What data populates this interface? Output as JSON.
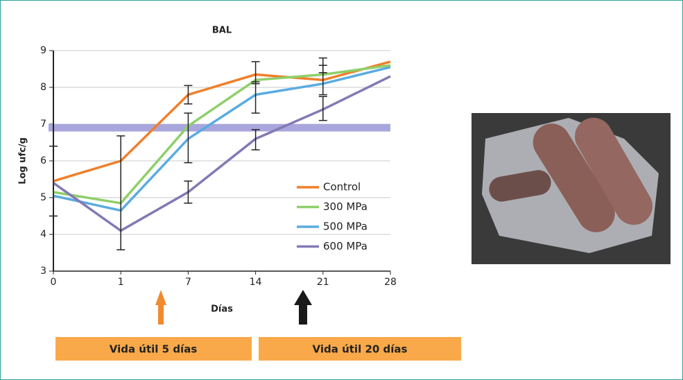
{
  "chart_data": {
    "type": "line",
    "title": "BAL",
    "x_label": "Días",
    "y_label": "Log ufc/g",
    "categories": [
      "0",
      "1",
      "7",
      "14",
      "21",
      "28"
    ],
    "series": [
      {
        "name": "Control",
        "color": "#f07f2a",
        "values": [
          5.45,
          6.0,
          7.8,
          8.35,
          8.2,
          8.7
        ]
      },
      {
        "name": "300 MPa",
        "color": "#8fcf6a",
        "values": [
          5.15,
          4.85,
          6.95,
          8.2,
          8.35,
          8.6
        ]
      },
      {
        "name": "500 MPa",
        "color": "#5aace0",
        "values": [
          5.05,
          4.65,
          6.6,
          7.8,
          8.1,
          8.55
        ]
      },
      {
        "name": "600 MPa",
        "color": "#8479b5",
        "values": [
          5.4,
          4.1,
          5.15,
          6.6,
          7.4,
          8.3
        ]
      }
    ],
    "error_bars": [
      {
        "category": "0",
        "low": 4.5,
        "high": 6.4
      },
      {
        "category": "1",
        "low": 3.58,
        "high": 6.68
      },
      {
        "category": "7",
        "low": 4.85,
        "high": 5.45
      },
      {
        "category": "7",
        "low": 5.95,
        "high": 7.3
      },
      {
        "category": "7",
        "low": 7.55,
        "high": 8.05
      },
      {
        "category": "14",
        "low": 6.3,
        "high": 6.85
      },
      {
        "category": "14",
        "low": 7.3,
        "high": 8.15
      },
      {
        "category": "14",
        "low": 8.1,
        "high": 8.7
      },
      {
        "category": "21",
        "low": 7.1,
        "high": 7.75
      },
      {
        "category": "21",
        "low": 7.8,
        "high": 8.6
      },
      {
        "category": "21",
        "low": 8.4,
        "high": 8.8
      }
    ],
    "threshold_band": {
      "low": 6.8,
      "high": 7.0,
      "color": "#a8a6dc"
    },
    "ylim": [
      3,
      9
    ],
    "yticks": [
      3,
      4,
      5,
      6,
      7,
      8,
      9
    ],
    "grid": true,
    "annotations": [
      "Vida útil 5 días",
      "Vida útil 20 días"
    ]
  }
}
